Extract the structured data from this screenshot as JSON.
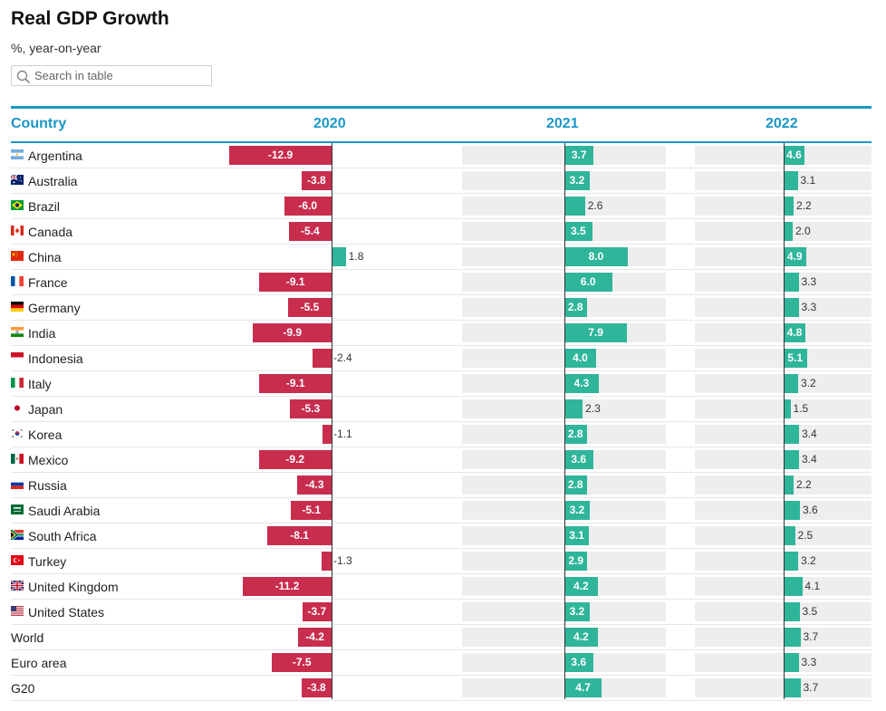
{
  "header": {
    "title": "Real GDP Growth",
    "subtitle": "%, year-on-year"
  },
  "search": {
    "placeholder": "Search in table",
    "icon": "search-icon"
  },
  "colors": {
    "accent": "#1b97c6",
    "negative": "#c82d4e",
    "positive": "#2fb59a",
    "track": "#eeeeee"
  },
  "chart_data": {
    "type": "table",
    "columns": [
      "Country",
      "2020",
      "2021",
      "2022"
    ],
    "series": [
      {
        "name": "2020",
        "values": [
          -12.9,
          -3.8,
          -6.0,
          -5.4,
          1.8,
          -9.1,
          -5.5,
          -9.9,
          -2.4,
          -9.1,
          -5.3,
          -1.1,
          -9.2,
          -4.3,
          -5.1,
          -8.1,
          -1.3,
          -11.2,
          -3.7,
          -4.2,
          -7.5,
          -3.8
        ]
      },
      {
        "name": "2021",
        "values": [
          3.7,
          3.2,
          2.6,
          3.5,
          8.0,
          6.0,
          2.8,
          7.9,
          4.0,
          4.3,
          2.3,
          2.8,
          3.6,
          2.8,
          3.2,
          3.1,
          2.9,
          4.2,
          3.2,
          4.2,
          3.6,
          4.7
        ]
      },
      {
        "name": "2022",
        "values": [
          4.6,
          3.1,
          2.2,
          2.0,
          4.9,
          3.3,
          3.3,
          4.8,
          5.1,
          3.2,
          1.5,
          3.4,
          3.4,
          2.2,
          3.6,
          2.5,
          3.2,
          4.1,
          3.5,
          3.7,
          3.3,
          3.7
        ]
      }
    ],
    "rows": [
      {
        "country": "Argentina",
        "flag": "argentina-flag-icon",
        "values": [
          "-12.9",
          "3.7",
          "4.6"
        ]
      },
      {
        "country": "Australia",
        "flag": "australia-flag-icon",
        "values": [
          "-3.8",
          "3.2",
          "3.1"
        ]
      },
      {
        "country": "Brazil",
        "flag": "brazil-flag-icon",
        "values": [
          "-6.0",
          "2.6",
          "2.2"
        ]
      },
      {
        "country": "Canada",
        "flag": "canada-flag-icon",
        "values": [
          "-5.4",
          "3.5",
          "2.0"
        ]
      },
      {
        "country": "China",
        "flag": "china-flag-icon",
        "values": [
          "1.8",
          "8.0",
          "4.9"
        ]
      },
      {
        "country": "France",
        "flag": "france-flag-icon",
        "values": [
          "-9.1",
          "6.0",
          "3.3"
        ]
      },
      {
        "country": "Germany",
        "flag": "germany-flag-icon",
        "values": [
          "-5.5",
          "2.8",
          "3.3"
        ]
      },
      {
        "country": "India",
        "flag": "india-flag-icon",
        "values": [
          "-9.9",
          "7.9",
          "4.8"
        ]
      },
      {
        "country": "Indonesia",
        "flag": "indonesia-flag-icon",
        "values": [
          "-2.4",
          "4.0",
          "5.1"
        ]
      },
      {
        "country": "Italy",
        "flag": "italy-flag-icon",
        "values": [
          "-9.1",
          "4.3",
          "3.2"
        ]
      },
      {
        "country": "Japan",
        "flag": "japan-flag-icon",
        "values": [
          "-5.3",
          "2.3",
          "1.5"
        ]
      },
      {
        "country": "Korea",
        "flag": "korea-flag-icon",
        "values": [
          "-1.1",
          "2.8",
          "3.4"
        ]
      },
      {
        "country": "Mexico",
        "flag": "mexico-flag-icon",
        "values": [
          "-9.2",
          "3.6",
          "3.4"
        ]
      },
      {
        "country": "Russia",
        "flag": "russia-flag-icon",
        "values": [
          "-4.3",
          "2.8",
          "2.2"
        ]
      },
      {
        "country": "Saudi Arabia",
        "flag": "saudi-arabia-flag-icon",
        "values": [
          "-5.1",
          "3.2",
          "3.6"
        ]
      },
      {
        "country": "South Africa",
        "flag": "south-africa-flag-icon",
        "values": [
          "-8.1",
          "3.1",
          "2.5"
        ]
      },
      {
        "country": "Turkey",
        "flag": "turkey-flag-icon",
        "values": [
          "-1.3",
          "2.9",
          "3.2"
        ]
      },
      {
        "country": "United Kingdom",
        "flag": "united-kingdom-flag-icon",
        "values": [
          "-11.2",
          "4.2",
          "4.1"
        ]
      },
      {
        "country": "United States",
        "flag": "united-states-flag-icon",
        "values": [
          "-3.7",
          "3.2",
          "3.5"
        ]
      },
      {
        "country": "World",
        "flag": "",
        "values": [
          "-4.2",
          "4.2",
          "3.7"
        ]
      },
      {
        "country": "Euro area",
        "flag": "",
        "values": [
          "-7.5",
          "3.6",
          "3.3"
        ]
      },
      {
        "country": "G20",
        "flag": "",
        "values": [
          "-3.8",
          "4.7",
          "3.7"
        ]
      }
    ]
  }
}
